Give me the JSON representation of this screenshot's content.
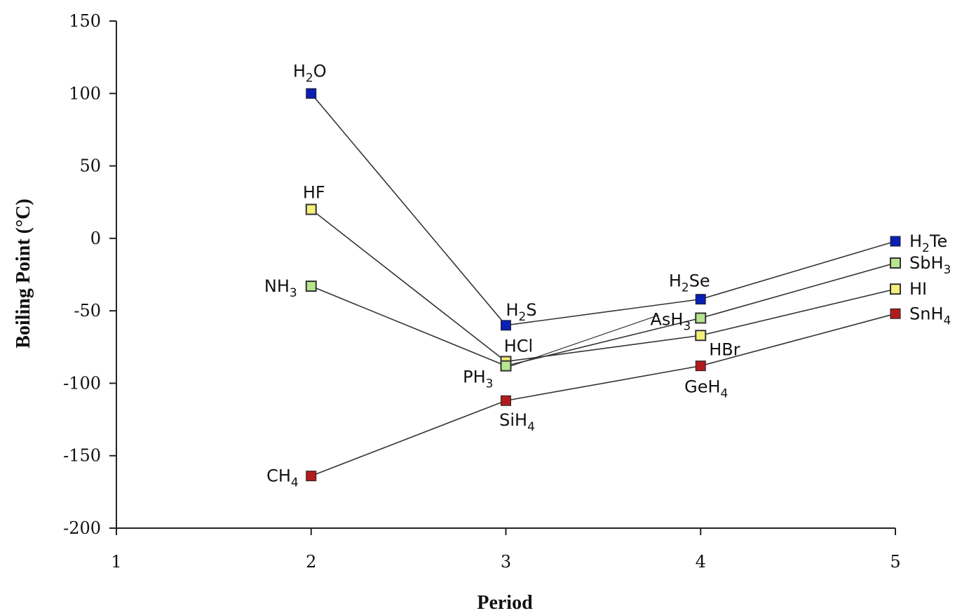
{
  "chart_data": {
    "type": "line",
    "title": "",
    "xlabel": "Period",
    "ylabel": "Boiling Point (°C)",
    "xlim": [
      1,
      5
    ],
    "ylim": [
      -200,
      150
    ],
    "x_ticks": [
      "1",
      "2",
      "3",
      "4",
      "5"
    ],
    "y_ticks": [
      "150",
      "100",
      "50",
      "0",
      "-50",
      "-100",
      "-150",
      "-200"
    ],
    "grid": false,
    "legend": "none",
    "series": [
      {
        "group": "group-16",
        "color": "#0a1fb4",
        "marker": "filled-square",
        "points": [
          {
            "x": 2,
            "y": 100,
            "label": "H",
            "sub": "2",
            "suffix": "O"
          },
          {
            "x": 3,
            "y": -60,
            "label": "H",
            "sub": "2",
            "suffix": "S"
          },
          {
            "x": 4,
            "y": -42,
            "label": "H",
            "sub": "2",
            "suffix": "Se"
          },
          {
            "x": 5,
            "y": -2,
            "label": "H",
            "sub": "2",
            "suffix": "Te"
          }
        ]
      },
      {
        "group": "group-17",
        "color": "#f3ef7a",
        "marker": "hollow-square",
        "points": [
          {
            "x": 2,
            "y": 20,
            "label": "HF",
            "sub": "",
            "suffix": ""
          },
          {
            "x": 3,
            "y": -85,
            "label": "HCl",
            "sub": "",
            "suffix": ""
          },
          {
            "x": 4,
            "y": -67,
            "label": "HBr",
            "sub": "",
            "suffix": ""
          },
          {
            "x": 5,
            "y": -35,
            "label": "HI",
            "sub": "",
            "suffix": ""
          }
        ]
      },
      {
        "group": "group-15",
        "color": "#b6e58c",
        "marker": "hollow-square",
        "points": [
          {
            "x": 2,
            "y": -33,
            "label": "NH",
            "sub": "3",
            "suffix": ""
          },
          {
            "x": 3,
            "y": -88,
            "label": "PH",
            "sub": "3",
            "suffix": ""
          },
          {
            "x": 4,
            "y": -55,
            "label": "AsH",
            "sub": "3",
            "suffix": ""
          },
          {
            "x": 5,
            "y": -17,
            "label": "SbH",
            "sub": "3",
            "suffix": ""
          }
        ]
      },
      {
        "group": "group-14",
        "color": "#b01c1c",
        "marker": "filled-square",
        "points": [
          {
            "x": 2,
            "y": -164,
            "label": "CH",
            "sub": "4",
            "suffix": ""
          },
          {
            "x": 3,
            "y": -112,
            "label": "SiH",
            "sub": "4",
            "suffix": ""
          },
          {
            "x": 4,
            "y": -88,
            "label": "GeH",
            "sub": "4",
            "suffix": ""
          },
          {
            "x": 5,
            "y": -52,
            "label": "SnH",
            "sub": "4",
            "suffix": ""
          }
        ]
      }
    ]
  }
}
